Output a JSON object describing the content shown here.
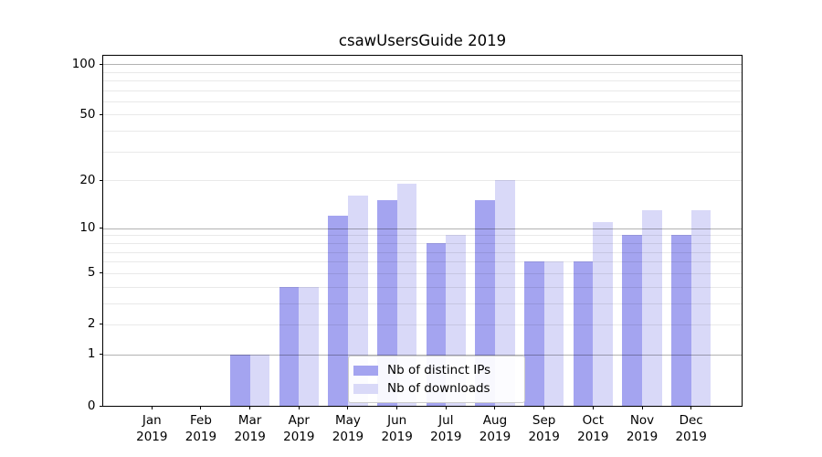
{
  "title": "csawUsersGuide 2019",
  "colors": {
    "distinct_ips": "#a4a4f0",
    "downloads": "#d9d9f8",
    "grid_major": "#b3b3b3",
    "grid_minor": "#e8e8e8",
    "axis": "#000000",
    "legend_border": "#cccccc"
  },
  "legend": {
    "items": [
      {
        "label": "Nb of distinct IPs",
        "color": "#a4a4f0"
      },
      {
        "label": "Nb of downloads",
        "color": "#d9d9f8"
      }
    ]
  },
  "chart_data": {
    "type": "bar",
    "title": "csawUsersGuide 2019",
    "categories": [
      "Jan 2019",
      "Feb 2019",
      "Mar 2019",
      "Apr 2019",
      "May 2019",
      "Jun 2019",
      "Jul 2019",
      "Aug 2019",
      "Sep 2019",
      "Oct 2019",
      "Nov 2019",
      "Dec 2019"
    ],
    "series": [
      {
        "name": "Nb of distinct IPs",
        "color": "#a4a4f0",
        "values": [
          0,
          0,
          1,
          4,
          12,
          15,
          8,
          15,
          6,
          6,
          9,
          9
        ]
      },
      {
        "name": "Nb of downloads",
        "color": "#d9d9f8",
        "values": [
          0,
          0,
          1,
          4,
          16,
          19,
          9,
          20,
          6,
          11,
          13,
          13
        ]
      }
    ],
    "xlabel": "",
    "ylabel": "",
    "yscale": "log1p",
    "ylim": [
      0,
      112
    ],
    "yticks": [
      0,
      1,
      2,
      5,
      10,
      20,
      50,
      100
    ],
    "major_gridlines": [
      1,
      10,
      100
    ],
    "minor_gridlines": [
      2,
      3,
      4,
      5,
      6,
      7,
      8,
      9,
      20,
      30,
      40,
      50,
      60,
      70,
      80,
      90
    ],
    "grid": true,
    "legend_position": "lower center"
  }
}
